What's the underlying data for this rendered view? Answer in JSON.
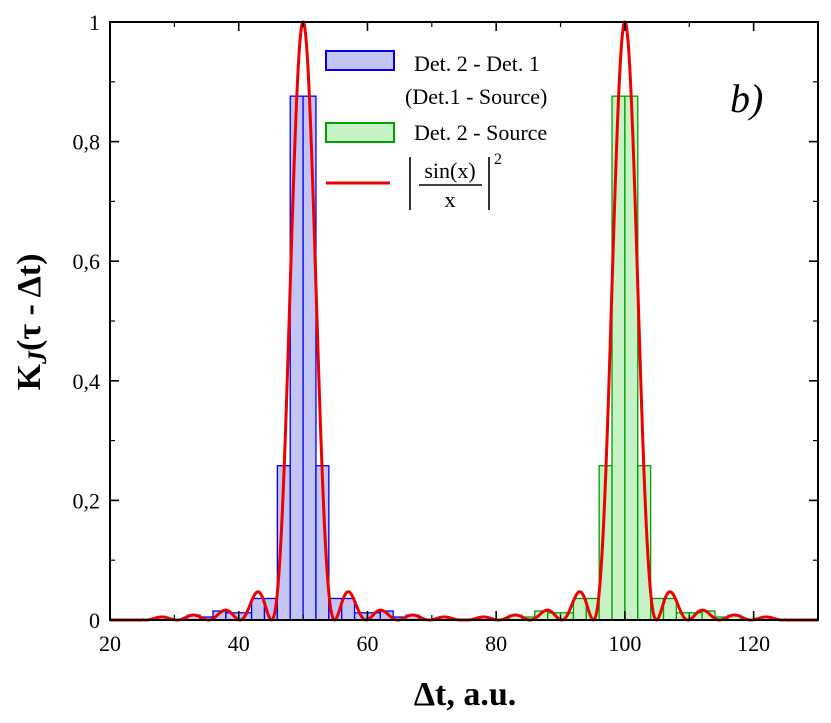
{
  "chart_data": {
    "type": "histogram_with_line",
    "panel_label": "b)",
    "xlabel": "Δt, a.u.",
    "ylabel": "K_J(τ - Δt)",
    "ylabel_parts": {
      "k": "K",
      "sub": "J",
      "tail": "(τ - Δt)"
    },
    "xlim": [
      20,
      130
    ],
    "ylim": [
      0,
      1
    ],
    "xticks": [
      20,
      40,
      60,
      80,
      100,
      120
    ],
    "xtick_labels": [
      "20",
      "40",
      "60",
      "80",
      "100",
      "120"
    ],
    "yticks": [
      0,
      0.2,
      0.4,
      0.6,
      0.8,
      1
    ],
    "ytick_labels": [
      "0",
      "0,2",
      "0,4",
      "0,6",
      "0,8",
      "1"
    ],
    "bin_width": 2,
    "series": [
      {
        "name": "Det. 2 - Det. 1 (Det.1 - Source)",
        "kind": "histogram",
        "color": "#0000ee",
        "fill": "#c4c4f3",
        "bins": [
          {
            "x0": 32,
            "y": 0.008
          },
          {
            "x0": 34,
            "y": 0.005
          },
          {
            "x0": 36,
            "y": 0.015
          },
          {
            "x0": 38,
            "y": 0.012
          },
          {
            "x0": 40,
            "y": 0.012
          },
          {
            "x0": 42,
            "y": 0.036
          },
          {
            "x0": 44,
            "y": 0.036
          },
          {
            "x0": 46,
            "y": 0.258
          },
          {
            "x0": 48,
            "y": 0.876
          },
          {
            "x0": 50,
            "y": 0.876
          },
          {
            "x0": 52,
            "y": 0.258
          },
          {
            "x0": 54,
            "y": 0.036
          },
          {
            "x0": 56,
            "y": 0.036
          },
          {
            "x0": 58,
            "y": 0.012
          },
          {
            "x0": 60,
            "y": 0.012
          },
          {
            "x0": 62,
            "y": 0.015
          },
          {
            "x0": 64,
            "y": 0.005
          },
          {
            "x0": 66,
            "y": 0.008
          }
        ]
      },
      {
        "name": "Det. 2 - Source",
        "kind": "histogram",
        "color": "#00a000",
        "fill": "#c6f2c6",
        "bins": [
          {
            "x0": 82,
            "y": 0.008
          },
          {
            "x0": 84,
            "y": 0.005
          },
          {
            "x0": 86,
            "y": 0.015
          },
          {
            "x0": 88,
            "y": 0.012
          },
          {
            "x0": 90,
            "y": 0.012
          },
          {
            "x0": 92,
            "y": 0.036
          },
          {
            "x0": 94,
            "y": 0.036
          },
          {
            "x0": 96,
            "y": 0.258
          },
          {
            "x0": 98,
            "y": 0.876
          },
          {
            "x0": 100,
            "y": 0.876
          },
          {
            "x0": 102,
            "y": 0.258
          },
          {
            "x0": 104,
            "y": 0.036
          },
          {
            "x0": 106,
            "y": 0.036
          },
          {
            "x0": 108,
            "y": 0.012
          },
          {
            "x0": 110,
            "y": 0.012
          },
          {
            "x0": 112,
            "y": 0.015
          },
          {
            "x0": 114,
            "y": 0.005
          },
          {
            "x0": 116,
            "y": 0.008
          }
        ]
      },
      {
        "name": "|sin(x)/x|^2",
        "kind": "line",
        "color": "#ee0000",
        "function": "sinc_squared",
        "centers": [
          50,
          100
        ],
        "zero_spacing": 4.9,
        "peak": 1
      }
    ],
    "legend": {
      "position": "top-center",
      "entries": [
        {
          "line1": "Det. 2 - Det. 1",
          "line2": "(Det.1 - Source)"
        },
        {
          "line1": "Det. 2 - Source"
        },
        {
          "num": "sin(x)",
          "den": "x",
          "exp": "2"
        }
      ]
    }
  }
}
